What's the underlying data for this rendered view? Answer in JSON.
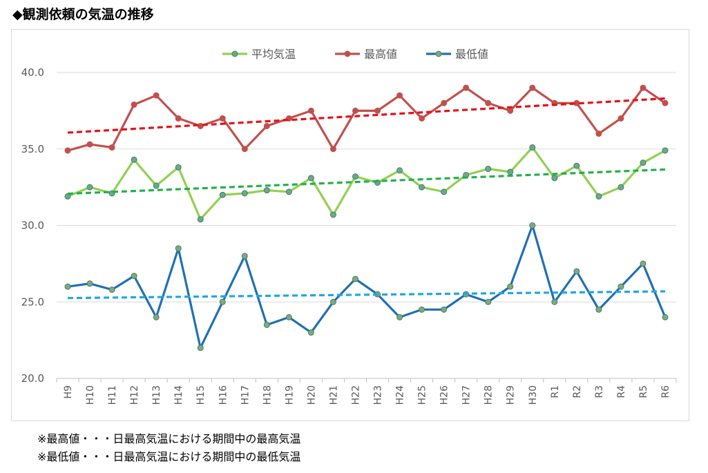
{
  "title": "◆観測依頼の気温の推移",
  "notes": [
    "※最高値・・・日最高気温における期間中の最高気温",
    "※最低値・・・日最高気温における期間中の最低気温"
  ],
  "chart_data": {
    "type": "line",
    "title": "",
    "xlabel": "",
    "ylabel": "",
    "ylim": [
      20,
      40
    ],
    "yticks": [
      "20.0",
      "25.0",
      "30.0",
      "35.0",
      "40.0"
    ],
    "grid": true,
    "legend_position": "top",
    "categories": [
      "H9",
      "H10",
      "H11",
      "H12",
      "H13",
      "H14",
      "H15",
      "H16",
      "H17",
      "H18",
      "H19",
      "H20",
      "H21",
      "H22",
      "H23",
      "H24",
      "H25",
      "H26",
      "H27",
      "H28",
      "H29",
      "H30",
      "R1",
      "R2",
      "R3",
      "R4",
      "R5",
      "R6"
    ],
    "series": [
      {
        "name": "平均気温",
        "color": "#92d050",
        "marker_color": "#6aaa8a",
        "trend_color": "#22b04a",
        "values": [
          31.9,
          32.5,
          32.1,
          34.3,
          32.6,
          33.8,
          30.4,
          32.0,
          32.1,
          32.3,
          32.2,
          33.1,
          30.7,
          33.2,
          32.8,
          33.6,
          32.5,
          32.2,
          33.3,
          33.7,
          33.5,
          35.1,
          33.1,
          33.9,
          31.9,
          32.5,
          34.1,
          34.9
        ]
      },
      {
        "name": "最高値",
        "color": "#c0504d",
        "marker_color": "#c0504d",
        "trend_color": "#e8101a",
        "values": [
          34.9,
          35.3,
          35.1,
          37.9,
          38.5,
          37.0,
          36.5,
          37.0,
          35.0,
          36.5,
          37.0,
          37.5,
          35.0,
          37.5,
          37.5,
          38.5,
          37.0,
          38.0,
          39.0,
          38.0,
          37.5,
          39.0,
          38.0,
          38.0,
          36.0,
          37.0,
          39.0,
          38.0
        ]
      },
      {
        "name": "最低値",
        "color": "#1f6fb4",
        "marker_color": "#7dab7c",
        "trend_color": "#1fa7e1",
        "values": [
          26.0,
          26.2,
          25.8,
          26.7,
          24.0,
          28.5,
          22.0,
          25.0,
          28.0,
          23.5,
          24.0,
          23.0,
          25.0,
          26.5,
          25.5,
          24.0,
          24.5,
          24.5,
          25.5,
          25.0,
          26.0,
          30.0,
          25.0,
          27.0,
          24.5,
          26.0,
          27.5,
          24.0
        ]
      }
    ]
  }
}
